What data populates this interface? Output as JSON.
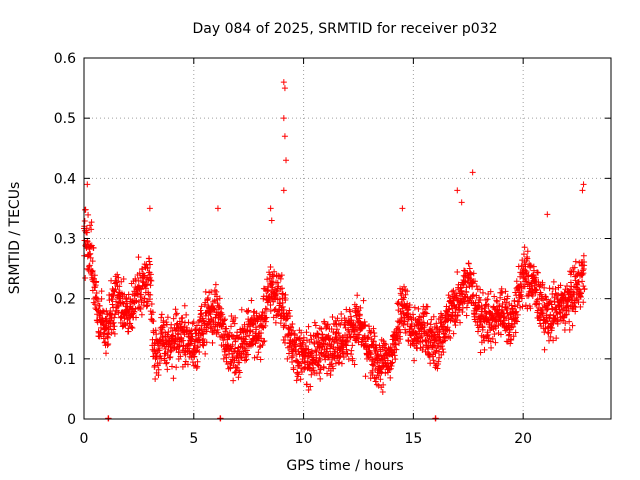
{
  "chart_data": {
    "type": "scatter",
    "title": "Day 084 of 2025, SRMTID for receiver p032",
    "xlabel": "GPS time / hours",
    "ylabel": "SRMTID / TECUs",
    "xlim": [
      0,
      24
    ],
    "ylim": [
      0,
      0.6
    ],
    "xticks": [
      0,
      5,
      10,
      15,
      20
    ],
    "xtick_labels": [
      "0",
      "5",
      "10",
      "15",
      "20"
    ],
    "yticks": [
      0,
      0.1,
      0.2,
      0.3,
      0.4,
      0.5,
      0.6
    ],
    "ytick_labels": [
      "0",
      "0.1",
      "0.2",
      "0.3",
      "0.4",
      "0.5",
      "0.6"
    ],
    "grid": true,
    "marker": "+",
    "color": "#ff0000",
    "series": [
      {
        "name": "SRMTID p032",
        "trend": [
          [
            0.0,
            0.3
          ],
          [
            0.3,
            0.28
          ],
          [
            0.6,
            0.18
          ],
          [
            1.0,
            0.15
          ],
          [
            1.5,
            0.2
          ],
          [
            2.0,
            0.17
          ],
          [
            2.5,
            0.21
          ],
          [
            3.0,
            0.24
          ],
          [
            3.2,
            0.11
          ],
          [
            3.6,
            0.13
          ],
          [
            4.0,
            0.12
          ],
          [
            4.5,
            0.14
          ],
          [
            5.0,
            0.12
          ],
          [
            5.5,
            0.16
          ],
          [
            6.0,
            0.18
          ],
          [
            6.5,
            0.13
          ],
          [
            7.0,
            0.11
          ],
          [
            7.5,
            0.15
          ],
          [
            8.0,
            0.14
          ],
          [
            8.5,
            0.22
          ],
          [
            9.0,
            0.19
          ],
          [
            9.3,
            0.15
          ],
          [
            9.7,
            0.11
          ],
          [
            10.0,
            0.1
          ],
          [
            10.5,
            0.11
          ],
          [
            11.0,
            0.12
          ],
          [
            11.5,
            0.13
          ],
          [
            12.0,
            0.14
          ],
          [
            12.5,
            0.16
          ],
          [
            13.0,
            0.11
          ],
          [
            13.5,
            0.09
          ],
          [
            14.0,
            0.1
          ],
          [
            14.5,
            0.2
          ],
          [
            15.0,
            0.14
          ],
          [
            15.5,
            0.15
          ],
          [
            16.0,
            0.12
          ],
          [
            16.5,
            0.16
          ],
          [
            17.0,
            0.2
          ],
          [
            17.5,
            0.23
          ],
          [
            18.0,
            0.17
          ],
          [
            18.5,
            0.16
          ],
          [
            19.0,
            0.18
          ],
          [
            19.5,
            0.16
          ],
          [
            20.0,
            0.24
          ],
          [
            20.5,
            0.22
          ],
          [
            21.0,
            0.17
          ],
          [
            21.5,
            0.18
          ],
          [
            22.0,
            0.19
          ],
          [
            22.5,
            0.22
          ],
          [
            22.8,
            0.24
          ]
        ],
        "spikes": [
          [
            0.15,
            0.39
          ],
          [
            9.1,
            0.56
          ],
          [
            9.15,
            0.55
          ],
          [
            9.1,
            0.5
          ],
          [
            9.15,
            0.47
          ],
          [
            9.2,
            0.43
          ],
          [
            9.1,
            0.38
          ],
          [
            8.5,
            0.35
          ],
          [
            8.55,
            0.33
          ],
          [
            17.7,
            0.41
          ],
          [
            17.0,
            0.38
          ],
          [
            14.5,
            0.35
          ],
          [
            22.7,
            0.38
          ],
          [
            22.75,
            0.39
          ],
          [
            3.0,
            0.35
          ],
          [
            6.1,
            0.35
          ],
          [
            21.1,
            0.34
          ],
          [
            17.2,
            0.36
          ]
        ],
        "zero_points": [
          1.1,
          6.2,
          16.0
        ]
      }
    ]
  }
}
